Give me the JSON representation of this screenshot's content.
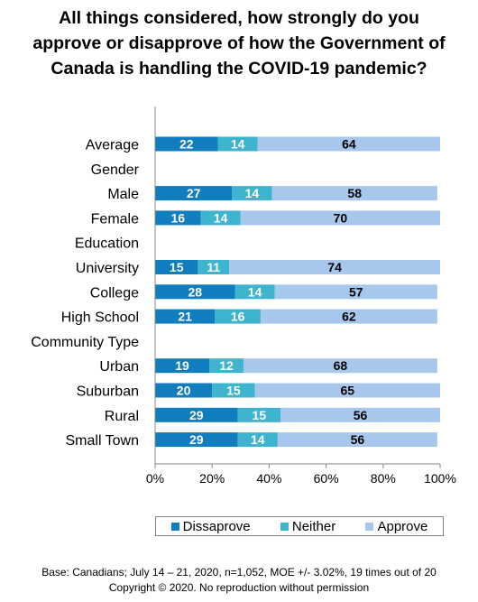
{
  "title_lines": [
    "All things considered, how strongly do you",
    "approve or disapprove of how the Government of",
    "Canada is handling the COVID-19 pandemic?"
  ],
  "footer": {
    "base": "Base: Canadians; July 14 – 21, 2020, n=1,052, MOE +/- 3.02%, 19 times out of 20",
    "copyright": "Copyright © 2020. No reproduction without permission"
  },
  "colors": {
    "Dissaprove": "#0f7dbe",
    "Neither": "#3fb4cf",
    "Approve": "#a8c7ec"
  },
  "chart_data": {
    "type": "bar",
    "orientation": "horizontal",
    "stacked": true,
    "percent_stacked": true,
    "xlim": [
      0,
      100
    ],
    "x_ticks": [
      "0%",
      "20%",
      "40%",
      "60%",
      "80%",
      "100%"
    ],
    "legend_position": "bottom",
    "grid": false,
    "rows": [
      {
        "label": "Average",
        "values": [
          22,
          14,
          64
        ]
      },
      {
        "label": "Gender",
        "header": true
      },
      {
        "label": "Male",
        "values": [
          27,
          14,
          58
        ]
      },
      {
        "label": "Female",
        "values": [
          16,
          14,
          70
        ]
      },
      {
        "label": "Education",
        "header": true
      },
      {
        "label": "University",
        "values": [
          15,
          11,
          74
        ]
      },
      {
        "label": "College",
        "values": [
          28,
          14,
          57
        ]
      },
      {
        "label": "High School",
        "values": [
          21,
          16,
          62
        ]
      },
      {
        "label": "Community Type",
        "header": true
      },
      {
        "label": "Urban",
        "values": [
          19,
          12,
          68
        ]
      },
      {
        "label": "Suburban",
        "values": [
          20,
          15,
          65
        ]
      },
      {
        "label": "Rural",
        "values": [
          29,
          15,
          56
        ]
      },
      {
        "label": "Small Town",
        "values": [
          29,
          14,
          56
        ]
      }
    ],
    "series": [
      {
        "name": "Dissaprove"
      },
      {
        "name": "Neither"
      },
      {
        "name": "Approve"
      }
    ]
  }
}
